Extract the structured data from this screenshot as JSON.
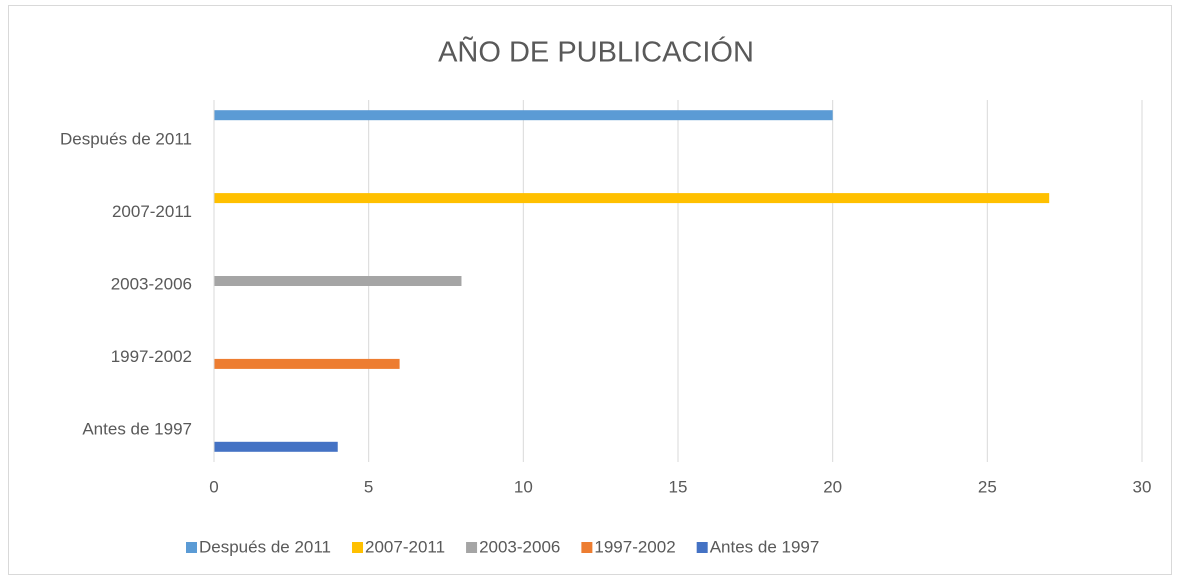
{
  "chart_data": {
    "type": "bar",
    "orientation": "horizontal",
    "title": "AÑO DE PUBLICACIÓN",
    "categories": [
      "Antes de 1997",
      "1997-2002",
      "2003-2006",
      "2007-2011",
      "Después de 2011"
    ],
    "series": [
      {
        "name": "Después de 2011",
        "color": "#5b9bd5",
        "values": [
          null,
          null,
          null,
          null,
          20
        ]
      },
      {
        "name": "2007-2011",
        "color": "#ffc000",
        "values": [
          null,
          null,
          null,
          27,
          null
        ]
      },
      {
        "name": "2003-2006",
        "color": "#a5a5a5",
        "values": [
          null,
          null,
          8,
          null,
          null
        ]
      },
      {
        "name": "1997-2002",
        "color": "#ed7d31",
        "values": [
          null,
          6,
          null,
          null,
          null
        ]
      },
      {
        "name": "Antes de 1997",
        "color": "#4472c4",
        "values": [
          4,
          null,
          null,
          null,
          null
        ]
      }
    ],
    "xlim": [
      0,
      30
    ],
    "xticks": [
      0,
      5,
      10,
      15,
      20,
      25,
      30
    ],
    "grid": true,
    "legend": "bottom"
  }
}
